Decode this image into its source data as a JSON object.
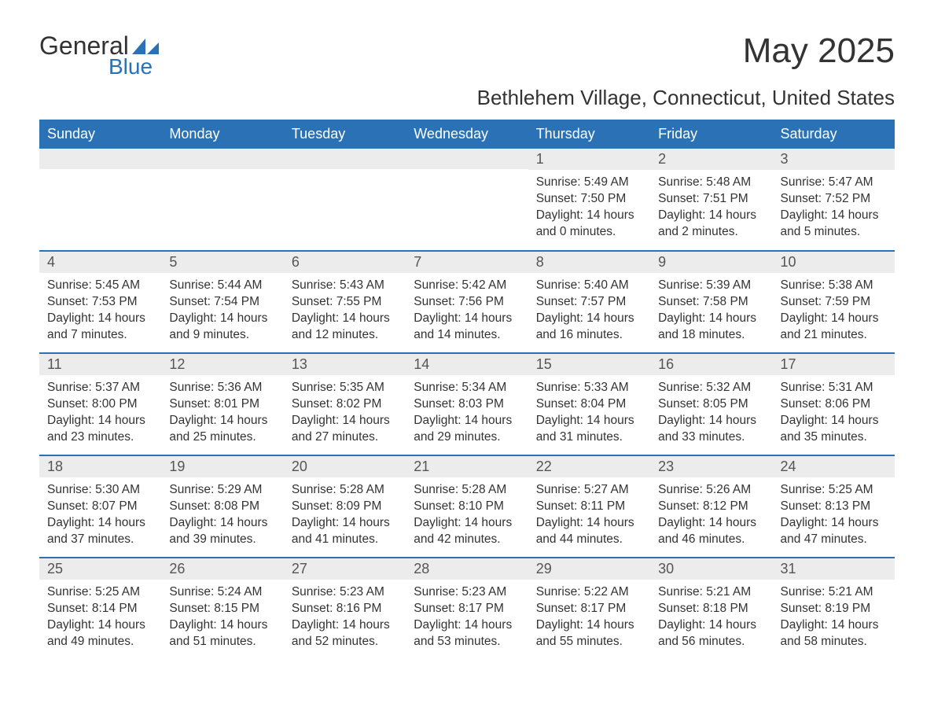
{
  "logo": {
    "text1": "General",
    "text2": "Blue"
  },
  "title": "May 2025",
  "location": "Bethlehem Village, Connecticut, United States",
  "colors": {
    "header_bg": "#2a72b5",
    "header_text": "#ffffff",
    "daynum_bg": "#ececec",
    "border": "#2a72b5",
    "body_text": "#333333"
  },
  "day_headers": [
    "Sunday",
    "Monday",
    "Tuesday",
    "Wednesday",
    "Thursday",
    "Friday",
    "Saturday"
  ],
  "weeks": [
    [
      {
        "num": "",
        "sunrise": "",
        "sunset": "",
        "daylight": ""
      },
      {
        "num": "",
        "sunrise": "",
        "sunset": "",
        "daylight": ""
      },
      {
        "num": "",
        "sunrise": "",
        "sunset": "",
        "daylight": ""
      },
      {
        "num": "",
        "sunrise": "",
        "sunset": "",
        "daylight": ""
      },
      {
        "num": "1",
        "sunrise": "Sunrise: 5:49 AM",
        "sunset": "Sunset: 7:50 PM",
        "daylight": "Daylight: 14 hours and 0 minutes."
      },
      {
        "num": "2",
        "sunrise": "Sunrise: 5:48 AM",
        "sunset": "Sunset: 7:51 PM",
        "daylight": "Daylight: 14 hours and 2 minutes."
      },
      {
        "num": "3",
        "sunrise": "Sunrise: 5:47 AM",
        "sunset": "Sunset: 7:52 PM",
        "daylight": "Daylight: 14 hours and 5 minutes."
      }
    ],
    [
      {
        "num": "4",
        "sunrise": "Sunrise: 5:45 AM",
        "sunset": "Sunset: 7:53 PM",
        "daylight": "Daylight: 14 hours and 7 minutes."
      },
      {
        "num": "5",
        "sunrise": "Sunrise: 5:44 AM",
        "sunset": "Sunset: 7:54 PM",
        "daylight": "Daylight: 14 hours and 9 minutes."
      },
      {
        "num": "6",
        "sunrise": "Sunrise: 5:43 AM",
        "sunset": "Sunset: 7:55 PM",
        "daylight": "Daylight: 14 hours and 12 minutes."
      },
      {
        "num": "7",
        "sunrise": "Sunrise: 5:42 AM",
        "sunset": "Sunset: 7:56 PM",
        "daylight": "Daylight: 14 hours and 14 minutes."
      },
      {
        "num": "8",
        "sunrise": "Sunrise: 5:40 AM",
        "sunset": "Sunset: 7:57 PM",
        "daylight": "Daylight: 14 hours and 16 minutes."
      },
      {
        "num": "9",
        "sunrise": "Sunrise: 5:39 AM",
        "sunset": "Sunset: 7:58 PM",
        "daylight": "Daylight: 14 hours and 18 minutes."
      },
      {
        "num": "10",
        "sunrise": "Sunrise: 5:38 AM",
        "sunset": "Sunset: 7:59 PM",
        "daylight": "Daylight: 14 hours and 21 minutes."
      }
    ],
    [
      {
        "num": "11",
        "sunrise": "Sunrise: 5:37 AM",
        "sunset": "Sunset: 8:00 PM",
        "daylight": "Daylight: 14 hours and 23 minutes."
      },
      {
        "num": "12",
        "sunrise": "Sunrise: 5:36 AM",
        "sunset": "Sunset: 8:01 PM",
        "daylight": "Daylight: 14 hours and 25 minutes."
      },
      {
        "num": "13",
        "sunrise": "Sunrise: 5:35 AM",
        "sunset": "Sunset: 8:02 PM",
        "daylight": "Daylight: 14 hours and 27 minutes."
      },
      {
        "num": "14",
        "sunrise": "Sunrise: 5:34 AM",
        "sunset": "Sunset: 8:03 PM",
        "daylight": "Daylight: 14 hours and 29 minutes."
      },
      {
        "num": "15",
        "sunrise": "Sunrise: 5:33 AM",
        "sunset": "Sunset: 8:04 PM",
        "daylight": "Daylight: 14 hours and 31 minutes."
      },
      {
        "num": "16",
        "sunrise": "Sunrise: 5:32 AM",
        "sunset": "Sunset: 8:05 PM",
        "daylight": "Daylight: 14 hours and 33 minutes."
      },
      {
        "num": "17",
        "sunrise": "Sunrise: 5:31 AM",
        "sunset": "Sunset: 8:06 PM",
        "daylight": "Daylight: 14 hours and 35 minutes."
      }
    ],
    [
      {
        "num": "18",
        "sunrise": "Sunrise: 5:30 AM",
        "sunset": "Sunset: 8:07 PM",
        "daylight": "Daylight: 14 hours and 37 minutes."
      },
      {
        "num": "19",
        "sunrise": "Sunrise: 5:29 AM",
        "sunset": "Sunset: 8:08 PM",
        "daylight": "Daylight: 14 hours and 39 minutes."
      },
      {
        "num": "20",
        "sunrise": "Sunrise: 5:28 AM",
        "sunset": "Sunset: 8:09 PM",
        "daylight": "Daylight: 14 hours and 41 minutes."
      },
      {
        "num": "21",
        "sunrise": "Sunrise: 5:28 AM",
        "sunset": "Sunset: 8:10 PM",
        "daylight": "Daylight: 14 hours and 42 minutes."
      },
      {
        "num": "22",
        "sunrise": "Sunrise: 5:27 AM",
        "sunset": "Sunset: 8:11 PM",
        "daylight": "Daylight: 14 hours and 44 minutes."
      },
      {
        "num": "23",
        "sunrise": "Sunrise: 5:26 AM",
        "sunset": "Sunset: 8:12 PM",
        "daylight": "Daylight: 14 hours and 46 minutes."
      },
      {
        "num": "24",
        "sunrise": "Sunrise: 5:25 AM",
        "sunset": "Sunset: 8:13 PM",
        "daylight": "Daylight: 14 hours and 47 minutes."
      }
    ],
    [
      {
        "num": "25",
        "sunrise": "Sunrise: 5:25 AM",
        "sunset": "Sunset: 8:14 PM",
        "daylight": "Daylight: 14 hours and 49 minutes."
      },
      {
        "num": "26",
        "sunrise": "Sunrise: 5:24 AM",
        "sunset": "Sunset: 8:15 PM",
        "daylight": "Daylight: 14 hours and 51 minutes."
      },
      {
        "num": "27",
        "sunrise": "Sunrise: 5:23 AM",
        "sunset": "Sunset: 8:16 PM",
        "daylight": "Daylight: 14 hours and 52 minutes."
      },
      {
        "num": "28",
        "sunrise": "Sunrise: 5:23 AM",
        "sunset": "Sunset: 8:17 PM",
        "daylight": "Daylight: 14 hours and 53 minutes."
      },
      {
        "num": "29",
        "sunrise": "Sunrise: 5:22 AM",
        "sunset": "Sunset: 8:17 PM",
        "daylight": "Daylight: 14 hours and 55 minutes."
      },
      {
        "num": "30",
        "sunrise": "Sunrise: 5:21 AM",
        "sunset": "Sunset: 8:18 PM",
        "daylight": "Daylight: 14 hours and 56 minutes."
      },
      {
        "num": "31",
        "sunrise": "Sunrise: 5:21 AM",
        "sunset": "Sunset: 8:19 PM",
        "daylight": "Daylight: 14 hours and 58 minutes."
      }
    ]
  ]
}
